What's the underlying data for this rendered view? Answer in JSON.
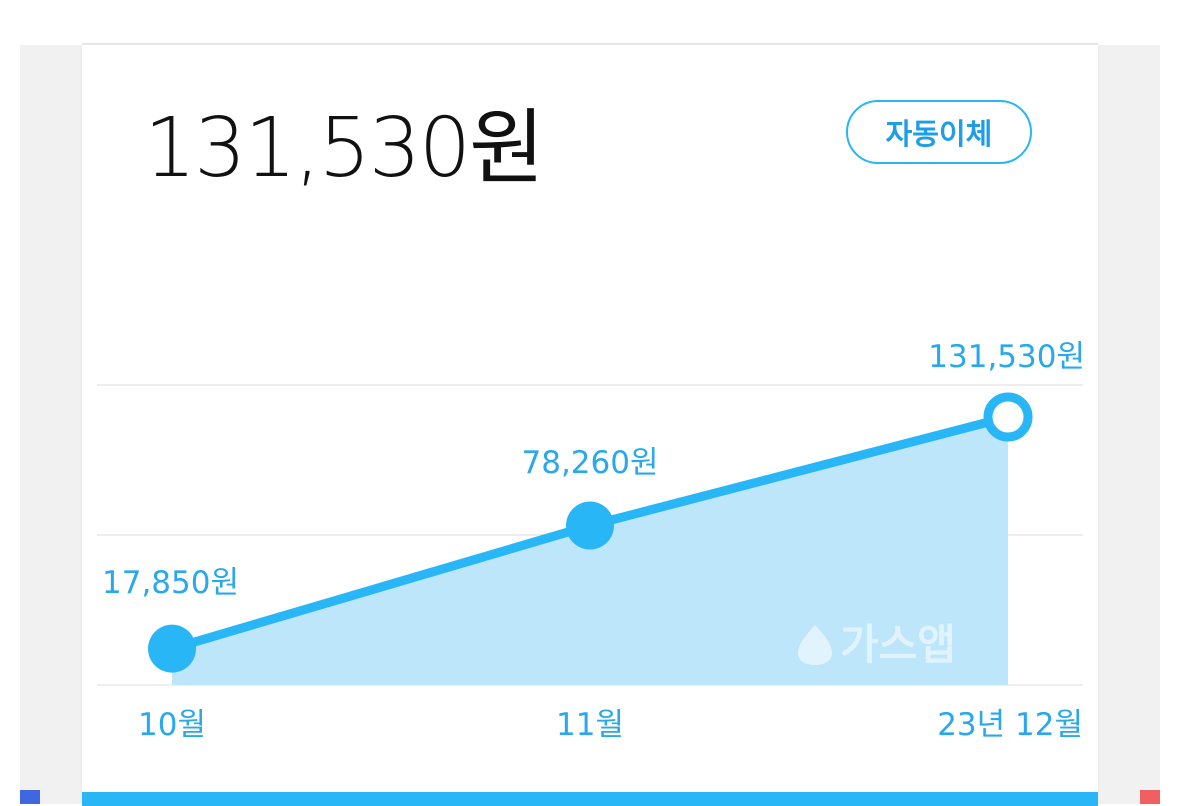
{
  "card": {
    "amount": "131,530원",
    "auto_transfer_label": "자동이체"
  },
  "watermark": "가스앱",
  "colors": {
    "accent": "#29b6f6",
    "area_fill": "#bde6fa",
    "grid": "#eeeeee",
    "side_mark_left": "#3f67e0",
    "side_mark_right": "#f06060"
  },
  "chart_data": {
    "type": "line",
    "categories": [
      "10월",
      "11월",
      "23년 12월"
    ],
    "values": [
      17850,
      78260,
      131530
    ],
    "data_labels": [
      "17,850원",
      "78,260원",
      "131,530원"
    ],
    "highlight_index": 2,
    "grid": true
  }
}
